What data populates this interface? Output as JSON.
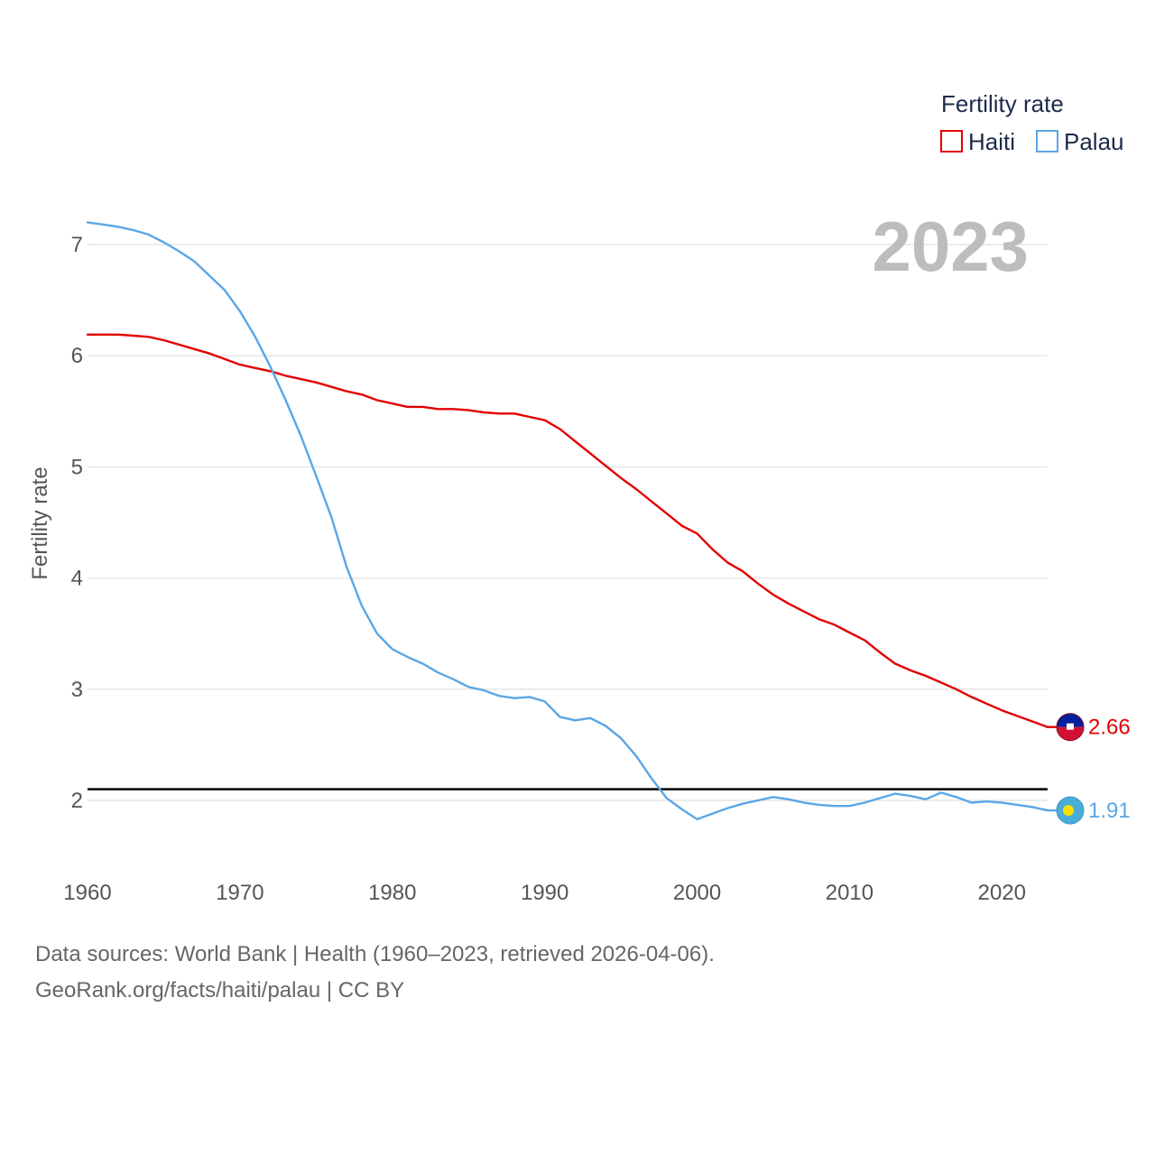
{
  "chart_data": {
    "type": "line",
    "title": "",
    "xlabel": "",
    "ylabel": "Fertility rate",
    "xlim": [
      1960,
      2023
    ],
    "ylim": [
      1.5,
      7.3
    ],
    "x_ticks": [
      "1960",
      "1970",
      "1980",
      "1990",
      "2000",
      "2010",
      "2020"
    ],
    "y_ticks": [
      "2",
      "3",
      "4",
      "5",
      "6",
      "7"
    ],
    "year_label": "2023",
    "legend": {
      "title": "Fertility rate",
      "position": "top-right"
    },
    "reference_line": {
      "value": 2.1,
      "color": "#000000"
    },
    "x": [
      1960,
      1961,
      1962,
      1963,
      1964,
      1965,
      1966,
      1967,
      1968,
      1969,
      1970,
      1971,
      1972,
      1973,
      1974,
      1975,
      1976,
      1977,
      1978,
      1979,
      1980,
      1981,
      1982,
      1983,
      1984,
      1985,
      1986,
      1987,
      1988,
      1989,
      1990,
      1991,
      1992,
      1993,
      1994,
      1995,
      1996,
      1997,
      1998,
      1999,
      2000,
      2001,
      2002,
      2003,
      2004,
      2005,
      2006,
      2007,
      2008,
      2009,
      2010,
      2011,
      2012,
      2013,
      2014,
      2015,
      2016,
      2017,
      2018,
      2019,
      2020,
      2021,
      2022,
      2023
    ],
    "series": [
      {
        "name": "Haiti",
        "color": "#e30000",
        "end_label": "2.66",
        "flag_icon": "haiti-flag-icon",
        "values": [
          6.19,
          6.19,
          6.19,
          6.18,
          6.17,
          6.14,
          6.1,
          6.06,
          6.02,
          5.97,
          5.92,
          5.89,
          5.86,
          5.82,
          5.79,
          5.76,
          5.72,
          5.68,
          5.65,
          5.6,
          5.57,
          5.54,
          5.54,
          5.52,
          5.52,
          5.51,
          5.49,
          5.48,
          5.48,
          5.45,
          5.42,
          5.34,
          5.23,
          5.12,
          5.01,
          4.9,
          4.8,
          4.69,
          4.58,
          4.47,
          4.4,
          4.26,
          4.14,
          4.06,
          3.95,
          3.85,
          3.77,
          3.7,
          3.63,
          3.58,
          3.51,
          3.44,
          3.33,
          3.23,
          3.17,
          3.12,
          3.06,
          3.0,
          2.93,
          2.87,
          2.81,
          2.76,
          2.71,
          2.66
        ]
      },
      {
        "name": "Palau",
        "color": "#5aa6e6",
        "end_label": "1.91",
        "flag_icon": "palau-flag-icon",
        "values": [
          7.2,
          7.18,
          7.16,
          7.13,
          7.09,
          7.02,
          6.94,
          6.85,
          6.72,
          6.59,
          6.4,
          6.17,
          5.9,
          5.6,
          5.28,
          4.92,
          4.55,
          4.1,
          3.75,
          3.5,
          3.36,
          3.29,
          3.23,
          3.15,
          3.09,
          3.02,
          2.99,
          2.94,
          2.92,
          2.93,
          2.89,
          2.75,
          2.72,
          2.74,
          2.67,
          2.56,
          2.4,
          2.2,
          2.02,
          1.92,
          1.83,
          1.88,
          1.93,
          1.97,
          2.0,
          2.03,
          2.01,
          1.98,
          1.96,
          1.95,
          1.95,
          1.98,
          2.02,
          2.06,
          2.04,
          2.01,
          2.07,
          2.03,
          1.98,
          1.99,
          1.98,
          1.96,
          1.94,
          1.91
        ]
      }
    ]
  },
  "footer": {
    "sources": "Data sources: World Bank | Health (1960–2023, retrieved 2026-04-06).",
    "credit": "GeoRank.org/facts/haiti/palau | CC BY"
  }
}
